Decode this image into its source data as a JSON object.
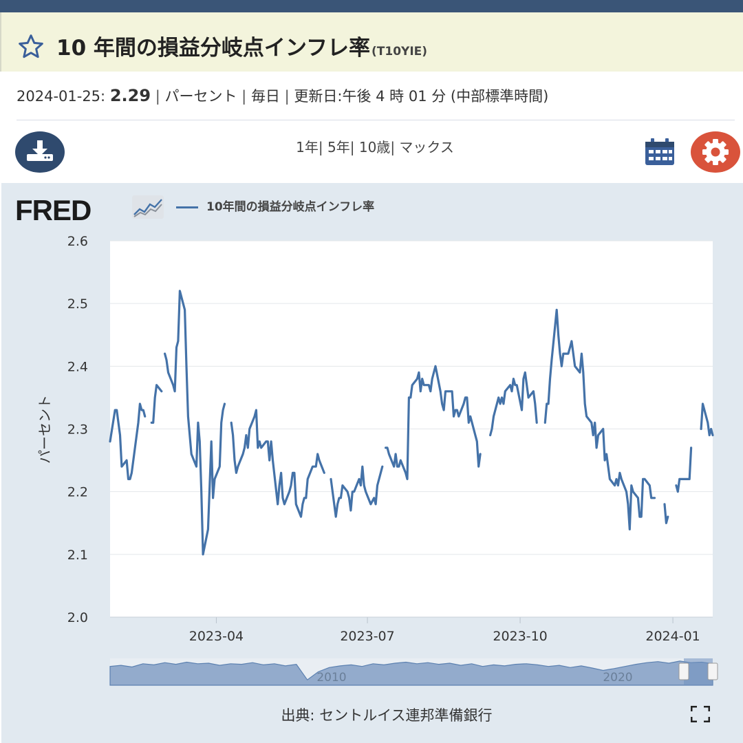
{
  "header": {
    "title": "10 年間の損益分岐点インフレ率",
    "series_code": "(T10YIE)"
  },
  "meta": {
    "date": "2024-01-25:",
    "value": "2.29",
    "units": "パーセント",
    "frequency": "毎日",
    "updated": "更新日:午後 4 時 01 分 (中部標準時間)"
  },
  "ranges": [
    "1年",
    "5年",
    "10歳",
    "マックス"
  ],
  "legend": {
    "series_name": "10年間の損益分岐点インフレ率"
  },
  "logo": {
    "text": "FRED"
  },
  "source": "出典: セントルイス連邦準備銀行",
  "icons": {
    "favorite": "star-icon",
    "download": "download-icon",
    "calendar": "calendar-icon",
    "settings": "gear-icon",
    "fullscreen": "fullscreen-icon"
  },
  "colors": {
    "line": "#4472a8",
    "header_bg": "#f3f4dc",
    "download_btn": "#2f4a6e",
    "settings_btn": "#d9533b",
    "panel_bg": "#e1e9f0"
  },
  "chart_data": {
    "type": "line",
    "title": "10年間の損益分岐点インフレ率",
    "xlabel": "",
    "ylabel": "パーセント",
    "ylim": [
      2.0,
      2.6
    ],
    "yticks": [
      "2.0",
      "2.1",
      "2.2",
      "2.3",
      "2.4",
      "2.5",
      "2.6"
    ],
    "xticks": [
      "2023-04",
      "2023-07",
      "2023-10",
      "2024-01"
    ],
    "grid": true,
    "series": [
      {
        "name": "10年間の損益分岐点インフレ率",
        "points": [
          [
            "2023-01-27",
            2.28
          ],
          [
            "2023-01-30",
            2.33
          ],
          [
            "2023-01-31",
            2.33
          ],
          [
            "2023-02-01",
            2.31
          ],
          [
            "2023-02-02",
            2.29
          ],
          [
            "2023-02-03",
            2.24
          ],
          [
            "2023-02-06",
            2.25
          ],
          [
            "2023-02-07",
            2.22
          ],
          [
            "2023-02-08",
            2.22
          ],
          [
            "2023-02-09",
            2.23
          ],
          [
            "2023-02-10",
            2.25
          ],
          [
            "2023-02-13",
            2.31
          ],
          [
            "2023-02-14",
            2.34
          ],
          [
            "2023-02-15",
            2.33
          ],
          [
            "2023-02-16",
            2.33
          ],
          [
            "2023-02-17",
            2.32
          ],
          [
            "2023-02-20",
            null
          ],
          [
            "2023-02-21",
            2.31
          ],
          [
            "2023-02-22",
            2.31
          ],
          [
            "2023-02-23",
            2.35
          ],
          [
            "2023-02-24",
            2.37
          ],
          [
            "2023-02-27",
            2.36
          ],
          [
            "2023-02-28",
            null
          ],
          [
            "2023-03-01",
            2.42
          ],
          [
            "2023-03-02",
            2.41
          ],
          [
            "2023-03-03",
            2.39
          ],
          [
            "2023-03-06",
            2.37
          ],
          [
            "2023-03-07",
            2.36
          ],
          [
            "2023-03-08",
            2.43
          ],
          [
            "2023-03-09",
            2.44
          ],
          [
            "2023-03-10",
            2.52
          ],
          [
            "2023-03-13",
            2.49
          ],
          [
            "2023-03-14",
            2.4
          ],
          [
            "2023-03-15",
            2.32
          ],
          [
            "2023-03-16",
            2.29
          ],
          [
            "2023-03-17",
            2.26
          ],
          [
            "2023-03-20",
            2.24
          ],
          [
            "2023-03-21",
            2.31
          ],
          [
            "2023-03-22",
            2.28
          ],
          [
            "2023-03-23",
            2.2
          ],
          [
            "2023-03-24",
            2.1
          ],
          [
            "2023-03-27",
            2.14
          ],
          [
            "2023-03-28",
            2.21
          ],
          [
            "2023-03-29",
            2.28
          ],
          [
            "2023-03-30",
            2.19
          ],
          [
            "2023-03-31",
            2.22
          ],
          [
            "2023-04-03",
            2.24
          ],
          [
            "2023-04-04",
            2.31
          ],
          [
            "2023-04-05",
            2.33
          ],
          [
            "2023-04-06",
            2.34
          ],
          [
            "2023-04-07",
            null
          ],
          [
            "2023-04-10",
            2.31
          ],
          [
            "2023-04-11",
            2.29
          ],
          [
            "2023-04-12",
            2.25
          ],
          [
            "2023-04-13",
            2.23
          ],
          [
            "2023-04-14",
            2.24
          ],
          [
            "2023-04-17",
            2.26
          ],
          [
            "2023-04-18",
            2.27
          ],
          [
            "2023-04-19",
            2.29
          ],
          [
            "2023-04-20",
            2.27
          ],
          [
            "2023-04-21",
            2.3
          ],
          [
            "2023-04-24",
            2.32
          ],
          [
            "2023-04-25",
            2.33
          ],
          [
            "2023-04-26",
            2.27
          ],
          [
            "2023-04-27",
            2.28
          ],
          [
            "2023-04-28",
            2.27
          ],
          [
            "2023-05-01",
            2.28
          ],
          [
            "2023-05-02",
            2.28
          ],
          [
            "2023-05-03",
            2.25
          ],
          [
            "2023-05-04",
            2.28
          ],
          [
            "2023-05-05",
            2.25
          ],
          [
            "2023-05-08",
            2.18
          ],
          [
            "2023-05-09",
            2.21
          ],
          [
            "2023-05-10",
            2.23
          ],
          [
            "2023-05-11",
            2.19
          ],
          [
            "2023-05-12",
            2.18
          ],
          [
            "2023-05-15",
            2.2
          ],
          [
            "2023-05-16",
            2.21
          ],
          [
            "2023-05-17",
            2.23
          ],
          [
            "2023-05-18",
            2.23
          ],
          [
            "2023-05-19",
            2.18
          ],
          [
            "2023-05-22",
            2.16
          ],
          [
            "2023-05-23",
            2.18
          ],
          [
            "2023-05-24",
            2.19
          ],
          [
            "2023-05-25",
            2.19
          ],
          [
            "2023-05-26",
            2.22
          ],
          [
            "2023-05-29",
            2.24
          ],
          [
            "2023-05-30",
            2.24
          ],
          [
            "2023-05-31",
            2.24
          ],
          [
            "2023-06-01",
            2.26
          ],
          [
            "2023-06-02",
            2.25
          ],
          [
            "2023-06-05",
            2.23
          ],
          [
            "2023-06-06",
            null
          ],
          [
            "2023-06-09",
            2.22
          ],
          [
            "2023-06-12",
            2.16
          ],
          [
            "2023-06-13",
            2.18
          ],
          [
            "2023-06-14",
            2.19
          ],
          [
            "2023-06-15",
            2.19
          ],
          [
            "2023-06-16",
            2.21
          ],
          [
            "2023-06-19",
            2.2
          ],
          [
            "2023-06-20",
            2.19
          ],
          [
            "2023-06-21",
            2.17
          ],
          [
            "2023-06-22",
            2.2
          ],
          [
            "2023-06-23",
            2.2
          ],
          [
            "2023-06-26",
            2.22
          ],
          [
            "2023-06-27",
            2.21
          ],
          [
            "2023-06-28",
            2.24
          ],
          [
            "2023-06-29",
            2.21
          ],
          [
            "2023-06-30",
            2.2
          ],
          [
            "2023-07-03",
            2.18
          ],
          [
            "2023-07-05",
            2.19
          ],
          [
            "2023-07-06",
            2.18
          ],
          [
            "2023-07-07",
            2.21
          ],
          [
            "2023-07-10",
            2.24
          ],
          [
            "2023-07-11",
            null
          ],
          [
            "2023-07-12",
            2.27
          ],
          [
            "2023-07-13",
            2.27
          ],
          [
            "2023-07-14",
            2.26
          ],
          [
            "2023-07-17",
            2.24
          ],
          [
            "2023-07-18",
            2.26
          ],
          [
            "2023-07-19",
            2.24
          ],
          [
            "2023-07-20",
            2.24
          ],
          [
            "2023-07-21",
            2.25
          ],
          [
            "2023-07-24",
            2.23
          ],
          [
            "2023-07-25",
            2.22
          ],
          [
            "2023-07-26",
            2.35
          ],
          [
            "2023-07-27",
            2.35
          ],
          [
            "2023-07-28",
            2.37
          ],
          [
            "2023-07-31",
            2.38
          ],
          [
            "2023-08-01",
            2.39
          ],
          [
            "2023-08-02",
            2.36
          ],
          [
            "2023-08-03",
            2.38
          ],
          [
            "2023-08-04",
            2.37
          ],
          [
            "2023-08-07",
            2.37
          ],
          [
            "2023-08-08",
            2.36
          ],
          [
            "2023-08-09",
            2.38
          ],
          [
            "2023-08-10",
            2.39
          ],
          [
            "2023-08-11",
            2.4
          ],
          [
            "2023-08-14",
            2.36
          ],
          [
            "2023-08-15",
            2.34
          ],
          [
            "2023-08-16",
            2.33
          ],
          [
            "2023-08-17",
            2.36
          ],
          [
            "2023-08-18",
            2.36
          ],
          [
            "2023-08-21",
            2.36
          ],
          [
            "2023-08-22",
            2.32
          ],
          [
            "2023-08-23",
            2.33
          ],
          [
            "2023-08-24",
            2.33
          ],
          [
            "2023-08-25",
            2.32
          ],
          [
            "2023-08-28",
            2.34
          ],
          [
            "2023-08-29",
            2.35
          ],
          [
            "2023-08-30",
            2.35
          ],
          [
            "2023-08-31",
            2.31
          ],
          [
            "2023-09-01",
            2.32
          ],
          [
            "2023-09-04",
            2.29
          ],
          [
            "2023-09-05",
            2.28
          ],
          [
            "2023-09-06",
            2.24
          ],
          [
            "2023-09-07",
            2.26
          ],
          [
            "2023-09-08",
            null
          ],
          [
            "2023-09-13",
            2.29
          ],
          [
            "2023-09-14",
            2.3
          ],
          [
            "2023-09-15",
            2.32
          ],
          [
            "2023-09-18",
            2.35
          ],
          [
            "2023-09-19",
            2.34
          ],
          [
            "2023-09-20",
            2.35
          ],
          [
            "2023-09-21",
            2.34
          ],
          [
            "2023-09-22",
            2.36
          ],
          [
            "2023-09-25",
            2.37
          ],
          [
            "2023-09-26",
            2.36
          ],
          [
            "2023-09-27",
            2.38
          ],
          [
            "2023-09-28",
            2.37
          ],
          [
            "2023-09-29",
            2.37
          ],
          [
            "2023-10-02",
            2.33
          ],
          [
            "2023-10-03",
            2.38
          ],
          [
            "2023-10-04",
            2.39
          ],
          [
            "2023-10-05",
            2.37
          ],
          [
            "2023-10-06",
            2.35
          ],
          [
            "2023-10-09",
            2.36
          ],
          [
            "2023-10-10",
            2.34
          ],
          [
            "2023-10-11",
            2.31
          ],
          [
            "2023-10-12",
            null
          ],
          [
            "2023-10-16",
            2.31
          ],
          [
            "2023-10-17",
            2.34
          ],
          [
            "2023-10-18",
            2.34
          ],
          [
            "2023-10-19",
            2.38
          ],
          [
            "2023-10-20",
            2.41
          ],
          [
            "2023-10-23",
            2.49
          ],
          [
            "2023-10-24",
            2.45
          ],
          [
            "2023-10-25",
            2.42
          ],
          [
            "2023-10-26",
            2.4
          ],
          [
            "2023-10-27",
            2.42
          ],
          [
            "2023-10-30",
            2.42
          ],
          [
            "2023-10-31",
            2.43
          ],
          [
            "2023-11-01",
            2.44
          ],
          [
            "2023-11-02",
            2.42
          ],
          [
            "2023-11-03",
            2.4
          ],
          [
            "2023-11-06",
            2.39
          ],
          [
            "2023-11-07",
            2.42
          ],
          [
            "2023-11-08",
            2.39
          ],
          [
            "2023-11-09",
            2.34
          ],
          [
            "2023-11-10",
            2.32
          ],
          [
            "2023-11-13",
            2.31
          ],
          [
            "2023-11-14",
            2.29
          ],
          [
            "2023-11-15",
            2.31
          ],
          [
            "2023-11-16",
            2.27
          ],
          [
            "2023-11-17",
            2.29
          ],
          [
            "2023-11-20",
            2.3
          ],
          [
            "2023-11-21",
            2.25
          ],
          [
            "2023-11-22",
            2.26
          ],
          [
            "2023-11-24",
            2.22
          ],
          [
            "2023-11-27",
            2.21
          ],
          [
            "2023-11-28",
            2.22
          ],
          [
            "2023-11-29",
            2.21
          ],
          [
            "2023-11-30",
            2.23
          ],
          [
            "2023-12-01",
            2.22
          ],
          [
            "2023-12-04",
            2.2
          ],
          [
            "2023-12-05",
            2.18
          ],
          [
            "2023-12-06",
            2.14
          ],
          [
            "2023-12-07",
            2.21
          ],
          [
            "2023-12-08",
            2.2
          ],
          [
            "2023-12-11",
            2.19
          ],
          [
            "2023-12-12",
            2.16
          ],
          [
            "2023-12-13",
            2.16
          ],
          [
            "2023-12-14",
            2.22
          ],
          [
            "2023-12-15",
            2.22
          ],
          [
            "2023-12-18",
            2.21
          ],
          [
            "2023-12-19",
            2.19
          ],
          [
            "2023-12-20",
            2.19
          ],
          [
            "2023-12-21",
            2.19
          ],
          [
            "2023-12-22",
            null
          ],
          [
            "2023-12-27",
            2.18
          ],
          [
            "2023-12-28",
            2.15
          ],
          [
            "2023-12-29",
            2.16
          ],
          [
            "2024-01-01",
            null
          ],
          [
            "2024-01-03",
            2.21
          ],
          [
            "2024-01-04",
            2.2
          ],
          [
            "2024-01-05",
            2.22
          ],
          [
            "2024-01-08",
            2.22
          ],
          [
            "2024-01-09",
            2.22
          ],
          [
            "2024-01-10",
            2.22
          ],
          [
            "2024-01-11",
            2.22
          ],
          [
            "2024-01-12",
            2.27
          ],
          [
            "2024-01-15",
            null
          ],
          [
            "2024-01-18",
            2.3
          ],
          [
            "2024-01-19",
            2.34
          ],
          [
            "2024-01-22",
            2.31
          ],
          [
            "2024-01-23",
            2.29
          ],
          [
            "2024-01-24",
            2.3
          ],
          [
            "2024-01-25",
            2.29
          ]
        ]
      }
    ],
    "navigator": {
      "type": "area",
      "xticks": [
        "2010",
        "2020"
      ]
    }
  }
}
